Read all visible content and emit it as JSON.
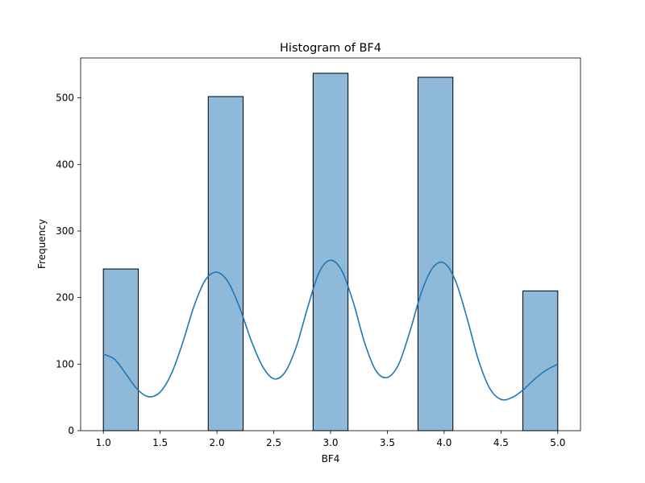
{
  "chart_data": {
    "type": "bar",
    "title": "Histogram of BF4",
    "xlabel": "BF4",
    "ylabel": "Frequency",
    "xlim": [
      0.8,
      5.2
    ],
    "ylim": [
      0,
      560
    ],
    "xticks": [
      1.0,
      1.5,
      2.0,
      2.5,
      3.0,
      3.5,
      4.0,
      4.5,
      5.0
    ],
    "xtick_labels": [
      "1.0",
      "1.5",
      "2.0",
      "2.5",
      "3.0",
      "3.5",
      "4.0",
      "4.5",
      "5.0"
    ],
    "yticks": [
      0,
      100,
      200,
      300,
      400,
      500
    ],
    "ytick_labels": [
      "0",
      "100",
      "200",
      "300",
      "400",
      "500"
    ],
    "grid": false,
    "bins": [
      {
        "x0": 1.0,
        "x1": 1.3077,
        "count": 243
      },
      {
        "x0": 1.3077,
        "x1": 1.6154,
        "count": 0
      },
      {
        "x0": 1.6154,
        "x1": 1.9231,
        "count": 0
      },
      {
        "x0": 1.9231,
        "x1": 2.2308,
        "count": 502
      },
      {
        "x0": 2.2308,
        "x1": 2.5385,
        "count": 0
      },
      {
        "x0": 2.5385,
        "x1": 2.8462,
        "count": 0
      },
      {
        "x0": 2.8462,
        "x1": 3.1538,
        "count": 537
      },
      {
        "x0": 3.1538,
        "x1": 3.4615,
        "count": 0
      },
      {
        "x0": 3.4615,
        "x1": 3.7692,
        "count": 0
      },
      {
        "x0": 3.7692,
        "x1": 4.0769,
        "count": 531
      },
      {
        "x0": 4.0769,
        "x1": 4.3846,
        "count": 0
      },
      {
        "x0": 4.3846,
        "x1": 4.6923,
        "count": 0
      },
      {
        "x0": 4.6923,
        "x1": 5.0,
        "count": 210
      }
    ],
    "kde": {
      "x": [
        1.0,
        1.1,
        1.2,
        1.3,
        1.4,
        1.5,
        1.6,
        1.7,
        1.8,
        1.9,
        2.0,
        2.1,
        2.2,
        2.3,
        2.4,
        2.5,
        2.6,
        2.7,
        2.8,
        2.9,
        3.0,
        3.1,
        3.2,
        3.3,
        3.4,
        3.5,
        3.6,
        3.7,
        3.8,
        3.9,
        4.0,
        4.1,
        4.2,
        4.3,
        4.4,
        4.5,
        4.6,
        4.7,
        4.8,
        4.9,
        5.0
      ],
      "y": [
        115,
        107,
        85,
        62,
        51,
        58,
        86,
        133,
        188,
        227,
        238,
        223,
        185,
        136,
        97,
        78,
        88,
        127,
        186,
        238,
        256,
        240,
        193,
        132,
        90,
        80,
        100,
        150,
        208,
        245,
        252,
        225,
        170,
        107,
        64,
        47,
        50,
        62,
        78,
        91,
        100
      ]
    },
    "colors": {
      "bar_fill": "#8fb9d9",
      "bar_edge": "#000000",
      "kde_line": "#1f77b4"
    }
  }
}
